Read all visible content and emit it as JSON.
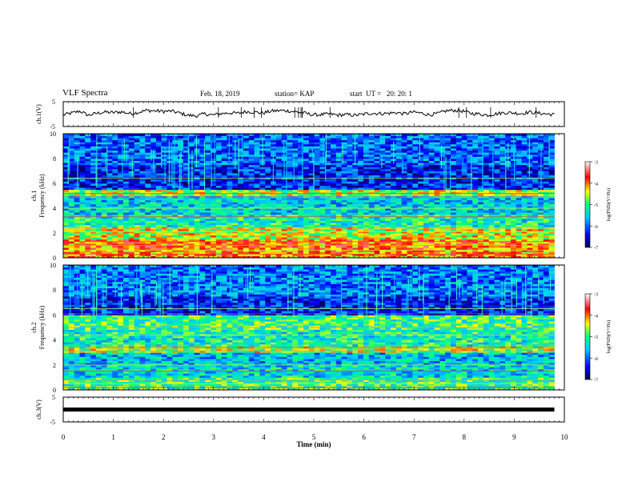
{
  "header": {
    "title": "VLF Spectra",
    "date": "Feb. 18, 2019",
    "station": "station= KAP",
    "start": "start  UT =   20: 20: 1"
  },
  "chart_data": [
    {
      "type": "line",
      "panel": "ch1-waveform",
      "ylabel": "ch.1(V)",
      "yticks": [
        "5",
        "-5"
      ],
      "ylim": [
        -5,
        5
      ],
      "xlim": [
        0,
        10
      ],
      "data_end_min": 9.8,
      "series": [
        {
          "values_estimate": [
            -0.3,
            0.4,
            1.2,
            -0.5,
            0.3,
            0.8,
            0.6,
            0.9,
            0.2,
            0.7,
            1.5,
            1.3,
            1.1,
            1.2,
            0.4,
            -0.5,
            -0.7,
            0.1,
            -0.4,
            0.2,
            0.5,
            0.3,
            1.0,
            0.8,
            0.4,
            1.2,
            1.4,
            1.3,
            0.9,
            0.4,
            -0.3,
            -0.2,
            0.0,
            -0.4,
            -0.2,
            -0.5,
            -0.1,
            0.4,
            0.2,
            0.3,
            0.6,
            0.1,
            0.8,
            0.4,
            -0.3,
            0.2,
            1.3,
            1.5,
            1.2,
            0.3,
            0.0,
            -0.4,
            0.1,
            0.6,
            0.5,
            0.2,
            0.8,
            0.4,
            0.1,
            -0.2
          ]
        }
      ],
      "line_color": "#000000"
    },
    {
      "type": "heatmap",
      "panel": "ch1-spectrogram",
      "ylabel": "Frequency  (kHz)",
      "channel_label": "ch.1",
      "yticks": [
        "0",
        "2",
        "4",
        "6",
        "8",
        "10"
      ],
      "ylim": [
        0,
        10
      ],
      "xlim": [
        0,
        10
      ],
      "colorbar": {
        "label": "log(PSD)(V²/Hz)",
        "ticks": [
          "-3",
          "-4",
          "-5",
          "-6",
          "-7"
        ],
        "range": [
          -7,
          -3
        ]
      },
      "bands_estimate": [
        [
          0.0,
          0.5,
          -4.1
        ],
        [
          0.5,
          1.5,
          -4.0
        ],
        [
          1.5,
          2.5,
          -4.5
        ],
        [
          2.5,
          3.5,
          -5.2
        ],
        [
          3.5,
          5.0,
          -5.5
        ],
        [
          5.0,
          5.5,
          -4.6
        ],
        [
          5.5,
          7.5,
          -6.3
        ],
        [
          7.5,
          10.0,
          -6.0
        ]
      ]
    },
    {
      "type": "heatmap",
      "panel": "ch2-spectrogram",
      "ylabel": "Frequency  (kHz)",
      "channel_label": "ch.2",
      "yticks": [
        "0",
        "2",
        "4",
        "6",
        "8",
        "10"
      ],
      "ylim": [
        0,
        10
      ],
      "xlim": [
        0,
        10
      ],
      "colorbar": {
        "label": "log(PSD)(V²/Hz)",
        "ticks": [
          "-3",
          "-4",
          "-5",
          "-6",
          "-7"
        ],
        "range": [
          -7,
          -3
        ]
      },
      "bands_estimate": [
        [
          0.0,
          1.0,
          -5.0
        ],
        [
          1.0,
          2.0,
          -5.4
        ],
        [
          2.0,
          3.0,
          -5.6
        ],
        [
          3.0,
          3.5,
          -4.6
        ],
        [
          3.5,
          4.8,
          -5.2
        ],
        [
          4.8,
          6.0,
          -5.0
        ],
        [
          6.0,
          7.5,
          -6.3
        ],
        [
          7.5,
          10.0,
          -5.9
        ]
      ]
    },
    {
      "type": "line",
      "panel": "ch3-waveform",
      "ylabel": "ch.3(V)",
      "yticks": [
        "5",
        "-5"
      ],
      "ylim": [
        -5,
        5
      ],
      "xlim": [
        0,
        10
      ],
      "data_end_min": 9.8,
      "series": [
        {
          "values_estimate": [
            0,
            0
          ]
        }
      ],
      "line_color": "#000000"
    }
  ],
  "xaxis": {
    "label": "Time  (min)",
    "ticks": [
      "0",
      "1",
      "2",
      "3",
      "4",
      "5",
      "6",
      "7",
      "8",
      "9",
      "10"
    ]
  }
}
